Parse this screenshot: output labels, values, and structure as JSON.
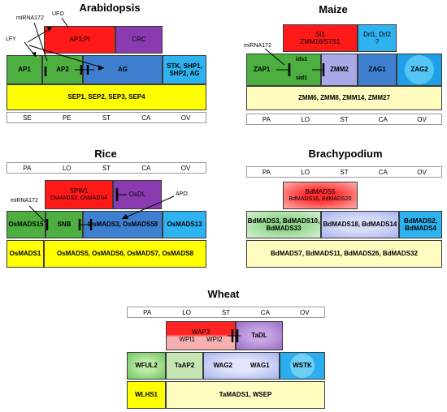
{
  "arabidopsis": {
    "title": "Arabidopsis",
    "genes": {
      "ufo": "UFO",
      "mirna": "miRNA172",
      "lfy": "LFY",
      "ap3pi": "AP3,PI",
      "crc": "CRC",
      "ap1": "AP1",
      "ap2": "AP2",
      "ag": "AG",
      "stk": "STK, SHP1, SHP2, AG",
      "sep": "SEP1, SEP2, SEP3, SEP4"
    },
    "organs": [
      "SE",
      "PE",
      "ST",
      "CA",
      "OV"
    ]
  },
  "maize": {
    "title": "Maize",
    "genes": {
      "si1": "SI1",
      "zmm16": "ZMM16/STS1",
      "drl": "Drl1, Drl2",
      "drl_q": "?",
      "mirna": "miRNA172",
      "ids1": "ids1",
      "sid1": "sid1",
      "zap1": "ZAP1",
      "zmm2": "ZMM2",
      "zag1": "ZAG1",
      "zag2": "ZAG2",
      "zmm6": "ZMM6, ZMM8, ZMM14, ZMM27"
    },
    "organs": [
      "PA",
      "LO",
      "ST",
      "CA",
      "OV"
    ]
  },
  "rice": {
    "title": "Rice",
    "organs": [
      "PA",
      "LO",
      "ST",
      "CA",
      "OV"
    ],
    "genes": {
      "spw1": "SPW1",
      "osmads52": "OsMADS2, OsMADS4",
      "osdl": "OsDL",
      "mirna": "miRNA172",
      "apo": "APO",
      "osmads15": "OsMADS15",
      "snb": "SNB",
      "osmads3": "OsMADS3, OsMADS58",
      "osmads13": "OsMADS13",
      "osmads1": "OsMADS1",
      "osmads5": "OsMADS5, OsMADS6, OsMADS7, OsMADS8"
    }
  },
  "brachypodium": {
    "title": "Brachypodium",
    "organs": [
      "PA",
      "LO",
      "ST",
      "CA",
      "OV"
    ],
    "genes": {
      "bdmads5": "BdMADS5",
      "bdmads16": "BdMADS16, BdMADS20",
      "bdmads3": "BdMADS3, BdMADS10, BdMADS33",
      "bdmads18": "BdMADS18, BdMADS14",
      "bdmads2": "BdMADS2, BdMADS4",
      "bdmads7": "BdMADS7, BdMADS11, BdMADS26, BdMADS32"
    }
  },
  "wheat": {
    "title": "Wheat",
    "organs": [
      "PA",
      "LO",
      "ST",
      "CA",
      "OV"
    ],
    "genes": {
      "wap3": "WAP3",
      "wpi1": "WPI1",
      "wpi2": "WPI2",
      "tadl": "TaDL",
      "wful2": "WFUL2",
      "taap2": "TaAP2",
      "wag2": "WAG2",
      "wag1": "WAG1",
      "wstk": "WSTK",
      "wlhs1": "WLHS1",
      "tamads1": "TaMADS1, WSEP"
    }
  }
}
